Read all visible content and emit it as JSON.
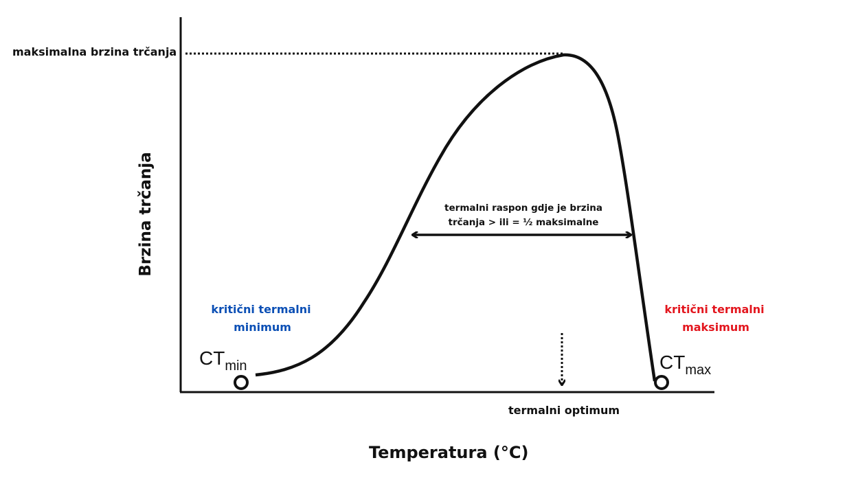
{
  "y_axis_label": "Brzina trčanja",
  "x_axis_label": "Temperatura (°C)",
  "max_speed_label": "maksimalna brzina trčanja",
  "range_label_line1": "termalni raspon gdje je brzina",
  "range_label_line2": "trčanja > ili = ½ maksimalne",
  "optimum_label": "termalni optimum",
  "ct_min": {
    "main": "CT",
    "sub": "min",
    "label_line1": "kritični termalni",
    "label_line2": "minimum",
    "color": "#0b4fb5"
  },
  "ct_max": {
    "main": "CT",
    "sub": "max",
    "label_line1": "kritični termalni",
    "label_line2": "maksimum",
    "color": "#e3161e"
  }
}
